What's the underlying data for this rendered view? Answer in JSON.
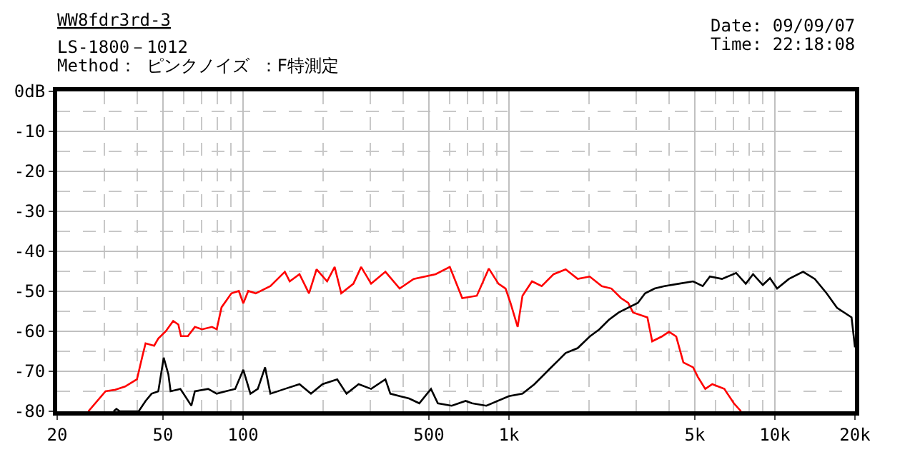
{
  "chart_data": {
    "type": "line",
    "title": "WW8fdr3rd-3",
    "subtitle": "LS-1800－1012",
    "annotations": [
      "Method： ピンクノイズ ：F特測定",
      "Date: 09/09/07",
      "Time: 22:18:08"
    ],
    "log": "x",
    "grid": true,
    "marker": "none",
    "line_style": "solid",
    "xlim": [
      20,
      20000
    ],
    "ylim": [
      -80,
      0
    ],
    "xticks": [
      20,
      50,
      100,
      500,
      {
        "value": 1000,
        "label": "1k"
      },
      {
        "value": 5000,
        "label": "5k"
      },
      {
        "value": 10000,
        "label": "10k"
      },
      {
        "value": 20000,
        "label": "20k"
      }
    ],
    "yticks": [
      {
        "value": 0,
        "label": "0dB"
      },
      -10,
      -20,
      -30,
      -40,
      -50,
      -60,
      -70,
      -80
    ],
    "series": [
      {
        "color": "#ff0000",
        "x": [
          26.2,
          30.4,
          33.1,
          36,
          39.9,
          41.9,
          43,
          46.3,
          48,
          51.2,
          54.6,
          57.1,
          58.4,
          62,
          65.9,
          70.1,
          76.4,
          79.6,
          83,
          90.4,
          96.4,
          100.2,
          104.6,
          111.6,
          126.7,
          143.6,
          149.8,
          163,
          177,
          189,
          207,
          221,
          234,
          260,
          278,
          303,
          343,
          388,
          438,
          530,
          599,
          667,
          757,
          840,
          913,
          971,
          1013,
          1078,
          1124,
          1221,
          1327,
          1473,
          1634,
          1813,
          2012,
          2234,
          2428,
          2638,
          2808,
          2929,
          3315,
          3456,
          3755,
          3998,
          4255,
          4527,
          4925,
          5131,
          5472,
          5814,
          6454,
          7008,
          7460
        ],
        "values": [
          -80,
          -75,
          -74.6,
          -73.8,
          -72,
          -66,
          -63,
          -63.6,
          -61.8,
          -60,
          -57.4,
          -58.3,
          -61.2,
          -61.2,
          -58.9,
          -59.5,
          -58.9,
          -59.5,
          -54,
          -50.5,
          -49.9,
          -53,
          -49.9,
          -50.5,
          -48.7,
          -45.1,
          -47.5,
          -45.7,
          -50.5,
          -44.5,
          -47.5,
          -43.9,
          -50.5,
          -48.1,
          -43.9,
          -48.1,
          -45.1,
          -49.3,
          -46.9,
          -45.7,
          -43.9,
          -51.7,
          -51.1,
          -44.3,
          -48.1,
          -49.3,
          -52.9,
          -58.9,
          -51.1,
          -47.5,
          -48.7,
          -45.7,
          -44.5,
          -46.9,
          -46.3,
          -48.7,
          -49.3,
          -51.7,
          -52.9,
          -55.3,
          -56.5,
          -62.5,
          -61.3,
          -60.1,
          -61.3,
          -67.8,
          -69,
          -71.4,
          -74.4,
          -73.2,
          -74.4,
          -78,
          -80
        ]
      },
      {
        "color": "#000000",
        "x": [
          32.6,
          33.4,
          34.4,
          40.5,
          43,
          45.3,
          48,
          50.3,
          52.4,
          53.4,
          58.1,
          63.9,
          65.9,
          73.9,
          79.6,
          86,
          93.4,
          100.2,
          106.6,
          113.6,
          121,
          126.7,
          143.6,
          163,
          180,
          199,
          226,
          245,
          272,
          303,
          343,
          358,
          388,
          421,
          460,
          509,
          540,
          609,
          687,
          726,
          822,
          1000,
          1124,
          1247,
          1412,
          1536,
          1634,
          1813,
          2012,
          2187,
          2377,
          2585,
          2808,
          3052,
          3249,
          3531,
          3837,
          4345,
          4925,
          5351,
          5698,
          6324,
          7147,
          7770,
          8277,
          9007,
          9582,
          10193,
          11287,
          12760,
          14130,
          15650,
          17120,
          19420,
          20000
        ],
        "values": [
          -80,
          -79.4,
          -80,
          -80,
          -77.4,
          -75.6,
          -75,
          -66.6,
          -70.8,
          -75,
          -74.4,
          -78.6,
          -75,
          -74.4,
          -75.6,
          -75,
          -74.4,
          -69.6,
          -75.6,
          -74.4,
          -69,
          -75.6,
          -74.4,
          -73.2,
          -75.6,
          -73.2,
          -72,
          -75.6,
          -73.2,
          -74.4,
          -72,
          -75.6,
          -76.2,
          -76.8,
          -78,
          -74.4,
          -78,
          -78.6,
          -77.4,
          -78,
          -78.6,
          -76.2,
          -75.6,
          -73.2,
          -69.6,
          -67.2,
          -65.4,
          -64.2,
          -61.3,
          -59.5,
          -57.1,
          -55.3,
          -54.1,
          -52.9,
          -50.5,
          -49.3,
          -48.7,
          -48.1,
          -47.5,
          -48.7,
          -46.3,
          -46.9,
          -45.4,
          -48.1,
          -45.7,
          -48.4,
          -46.7,
          -49.3,
          -46.9,
          -45.1,
          -46.9,
          -50.5,
          -54.1,
          -56.5,
          -64
        ]
      }
    ]
  }
}
